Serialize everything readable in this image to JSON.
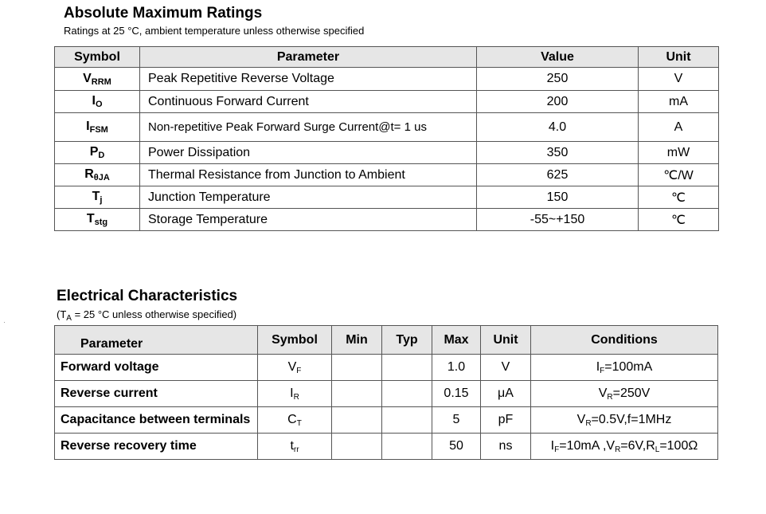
{
  "amr": {
    "title": "Absolute Maximum Ratings",
    "subtitle": "Ratings at  25 °C, ambient temperature unless otherwise specified",
    "headers": [
      "Symbol",
      "Parameter",
      "Value",
      "Unit"
    ],
    "rows": [
      {
        "sym": "V",
        "sub": "RRM",
        "param": "Peak Repetitive Reverse Voltage",
        "value": "250",
        "unit": "V"
      },
      {
        "sym": "I",
        "sub": "O",
        "param": "Continuous Forward Current",
        "value": "200",
        "unit": "mA"
      },
      {
        "sym": "I",
        "sub": "FSM",
        "param": "Non-repetitive Peak Forward Surge Current@t= 1 us",
        "value": "4.0",
        "unit": "A"
      },
      {
        "sym": "P",
        "sub": "D",
        "param": "Power Dissipation",
        "value": "350",
        "unit": "mW"
      },
      {
        "sym": "R",
        "sub": "θJA",
        "param": "Thermal Resistance from Junction to Ambient",
        "value": "625",
        "unit": "℃/W"
      },
      {
        "sym": "T",
        "sub": "j",
        "param": "Junction Temperature",
        "value": "150",
        "unit": "℃"
      },
      {
        "sym": "T",
        "sub": "stg",
        "param": "Storage Temperature",
        "value": "-55~+150",
        "unit": "℃"
      }
    ]
  },
  "ec": {
    "title": "Electrical Characteristics",
    "sub_pre": "(T",
    "sub_sub": "A",
    "sub_post": " = 25 °C unless otherwise specified)",
    "headers": [
      "Parameter",
      "Symbol",
      "Min",
      "Typ",
      "Max",
      "Unit",
      "Conditions"
    ],
    "rows": [
      {
        "param": "Forward voltage",
        "sym": "V",
        "sym_sub": "F",
        "min": "",
        "typ": "",
        "max": "1.0",
        "unit": "V",
        "cond": "I<sub>F</sub>=100mA"
      },
      {
        "param": "Reverse current",
        "sym": "I",
        "sym_sub": "R",
        "min": "",
        "typ": "",
        "max": "0.15",
        "unit": "μA",
        "cond": "V<sub>R</sub>=250V"
      },
      {
        "param": "Capacitance between terminals",
        "sym": "C",
        "sym_sub": "T",
        "min": "",
        "typ": "",
        "max": "5",
        "unit": "pF",
        "cond": "V<sub>R</sub>=0.5V,f=1MHz"
      },
      {
        "param": "Reverse recovery time",
        "sym": "t",
        "sym_sub": "rr",
        "min": "",
        "typ": "",
        "max": "50",
        "unit": "ns",
        "cond": "I<sub>F</sub>=10mA ,V<sub>R</sub>=6V,R<sub>L</sub>=100Ω"
      }
    ]
  }
}
